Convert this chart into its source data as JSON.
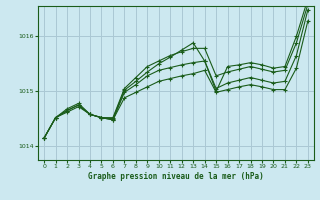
{
  "title": "Graphe pression niveau de la mer (hPa)",
  "background_color": "#cce8f0",
  "plot_bg_color": "#cce8f0",
  "grid_color": "#aac8d4",
  "line_color": "#1a5c1a",
  "xlim": [
    -0.5,
    23.5
  ],
  "ylim": [
    1013.75,
    1016.55
  ],
  "yticks": [
    1014,
    1015,
    1016
  ],
  "xticks": [
    0,
    1,
    2,
    3,
    4,
    5,
    6,
    7,
    8,
    9,
    10,
    11,
    12,
    13,
    14,
    15,
    16,
    17,
    18,
    19,
    20,
    21,
    22,
    23
  ],
  "line1": [
    1014.15,
    1014.52,
    1014.62,
    1014.72,
    1014.58,
    1014.52,
    1014.48,
    1014.88,
    1014.98,
    1015.08,
    1015.18,
    1015.23,
    1015.28,
    1015.32,
    1015.38,
    1014.98,
    1015.03,
    1015.08,
    1015.12,
    1015.08,
    1015.03,
    1015.03,
    1015.42,
    1016.28
  ],
  "line2": [
    1014.15,
    1014.52,
    1014.65,
    1014.75,
    1014.58,
    1014.52,
    1014.48,
    1014.98,
    1015.12,
    1015.28,
    1015.38,
    1015.43,
    1015.48,
    1015.52,
    1015.55,
    1015.05,
    1015.15,
    1015.2,
    1015.25,
    1015.2,
    1015.15,
    1015.18,
    1015.65,
    1016.48
  ],
  "line3": [
    1014.15,
    1014.52,
    1014.68,
    1014.78,
    1014.58,
    1014.52,
    1014.52,
    1015.05,
    1015.25,
    1015.45,
    1015.55,
    1015.65,
    1015.72,
    1015.78,
    1015.78,
    1015.28,
    1015.35,
    1015.4,
    1015.45,
    1015.4,
    1015.35,
    1015.38,
    1015.88,
    1016.58
  ],
  "line4_spiky": [
    1014.15,
    1014.52,
    1014.68,
    1014.78,
    1014.58,
    1014.52,
    1014.52,
    1015.05,
    1015.28,
    1015.48,
    1015.62,
    1015.72,
    1015.82,
    1015.88,
    1015.75,
    1015.02,
    1015.38,
    1015.45,
    1015.5,
    1015.45,
    1015.4,
    1015.42,
    1015.95,
    1016.65
  ]
}
